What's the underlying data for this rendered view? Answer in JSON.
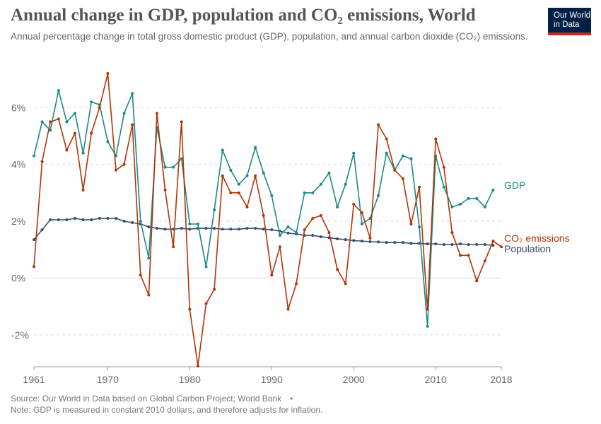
{
  "title": "Annual change in GDP, population and CO₂ emissions, World",
  "subtitle": "Annual percentage change in total gross domestic product (GDP), population, and annual carbon dioxide (CO₂) emissions.",
  "logo": {
    "line1": "Our World",
    "line2": "in Data",
    "bg_color": "#002147",
    "accent_color": "#ce261e"
  },
  "source": "Source: Our World in Data based on Global Carbon Project; World Bank",
  "source_separator": "•",
  "note": "Note: GDP is measured in constant 2010 dollars, and therefore adjusts for inflation.",
  "chart_data": {
    "type": "line",
    "title": "Annual change in GDP, population and CO₂ emissions, World",
    "xlabel": "",
    "ylabel": "",
    "xlim": [
      1961,
      2018
    ],
    "ylim": [
      -3.2,
      7.5
    ],
    "x_ticks": [
      1961,
      1970,
      1980,
      1990,
      2000,
      2010,
      2018
    ],
    "x_tick_labels": [
      "1961",
      "1970",
      "1980",
      "1990",
      "2000",
      "2010",
      "2018"
    ],
    "y_ticks": [
      -2,
      0,
      2,
      4,
      6
    ],
    "y_tick_labels": [
      "-2%",
      "0%",
      "2%",
      "4%",
      "6%"
    ],
    "grid": "horizontal dashed",
    "legend": "inline labels at right end of lines",
    "series": [
      {
        "name": "GDP",
        "color": "#1a8a87",
        "x": [
          1961,
          1962,
          1963,
          1964,
          1965,
          1966,
          1967,
          1968,
          1969,
          1970,
          1971,
          1972,
          1973,
          1974,
          1975,
          1976,
          1977,
          1978,
          1979,
          1980,
          1981,
          1982,
          1983,
          1984,
          1985,
          1986,
          1987,
          1988,
          1989,
          1990,
          1991,
          1992,
          1993,
          1994,
          1995,
          1996,
          1997,
          1998,
          1999,
          2000,
          2001,
          2002,
          2003,
          2004,
          2005,
          2006,
          2007,
          2008,
          2009,
          2010,
          2011,
          2012,
          2013,
          2014,
          2015,
          2016,
          2017
        ],
        "values": [
          4.3,
          5.5,
          5.2,
          6.6,
          5.5,
          5.8,
          4.4,
          6.2,
          6.1,
          4.8,
          4.3,
          5.8,
          6.5,
          2.0,
          0.7,
          5.3,
          3.9,
          3.9,
          4.2,
          1.9,
          1.9,
          0.4,
          2.4,
          4.5,
          3.8,
          3.3,
          3.6,
          4.6,
          3.7,
          2.9,
          1.5,
          1.8,
          1.6,
          3.0,
          3.0,
          3.3,
          3.7,
          2.5,
          3.3,
          4.4,
          1.9,
          2.1,
          2.9,
          4.4,
          3.8,
          4.3,
          4.2,
          1.8,
          -1.7,
          4.3,
          3.2,
          2.5,
          2.6,
          2.8,
          2.8,
          2.5,
          3.1
        ]
      },
      {
        "name": "CO₂ emissions",
        "color": "#b13507",
        "x": [
          1961,
          1962,
          1963,
          1964,
          1965,
          1966,
          1967,
          1968,
          1969,
          1970,
          1971,
          1972,
          1973,
          1974,
          1975,
          1976,
          1977,
          1978,
          1979,
          1980,
          1981,
          1982,
          1983,
          1984,
          1985,
          1986,
          1987,
          1988,
          1989,
          1990,
          1991,
          1992,
          1993,
          1994,
          1995,
          1996,
          1997,
          1998,
          1999,
          2000,
          2001,
          2002,
          2003,
          2004,
          2005,
          2006,
          2007,
          2008,
          2009,
          2010,
          2011,
          2012,
          2013,
          2014,
          2015,
          2016,
          2017,
          2018
        ],
        "values": [
          0.4,
          4.1,
          5.5,
          5.6,
          4.5,
          5.1,
          3.1,
          5.1,
          6.0,
          7.2,
          3.8,
          4.0,
          5.4,
          0.1,
          -0.6,
          5.8,
          3.1,
          1.1,
          5.5,
          -1.1,
          -3.1,
          -0.9,
          -0.4,
          3.6,
          3.0,
          3.0,
          2.5,
          3.6,
          2.2,
          0.1,
          1.1,
          -1.1,
          -0.2,
          1.7,
          2.1,
          2.2,
          1.6,
          0.3,
          -0.2,
          2.6,
          2.3,
          1.4,
          5.4,
          4.9,
          3.8,
          3.5,
          1.9,
          3.2,
          -1.1,
          4.9,
          3.9,
          1.6,
          0.8,
          0.8,
          -0.1,
          0.6,
          1.3,
          1.1
        ]
      },
      {
        "name": "Population",
        "color": "#3b4c6b",
        "x": [
          1961,
          1962,
          1963,
          1964,
          1965,
          1966,
          1967,
          1968,
          1969,
          1970,
          1971,
          1972,
          1973,
          1974,
          1975,
          1976,
          1977,
          1978,
          1979,
          1980,
          1981,
          1982,
          1983,
          1984,
          1985,
          1986,
          1987,
          1988,
          1989,
          1990,
          1991,
          1992,
          1993,
          1994,
          1995,
          1996,
          1997,
          1998,
          1999,
          2000,
          2001,
          2002,
          2003,
          2004,
          2005,
          2006,
          2007,
          2008,
          2009,
          2010,
          2011,
          2012,
          2013,
          2014,
          2015,
          2016,
          2017
        ],
        "values": [
          1.35,
          1.7,
          2.05,
          2.05,
          2.05,
          2.1,
          2.05,
          2.05,
          2.1,
          2.1,
          2.1,
          2.0,
          1.95,
          1.9,
          1.8,
          1.75,
          1.72,
          1.72,
          1.75,
          1.72,
          1.75,
          1.75,
          1.75,
          1.72,
          1.72,
          1.72,
          1.75,
          1.75,
          1.72,
          1.7,
          1.65,
          1.58,
          1.55,
          1.5,
          1.5,
          1.45,
          1.42,
          1.38,
          1.35,
          1.32,
          1.3,
          1.28,
          1.27,
          1.25,
          1.25,
          1.25,
          1.22,
          1.22,
          1.2,
          1.2,
          1.18,
          1.18,
          1.2,
          1.18,
          1.18,
          1.18,
          1.15
        ]
      }
    ]
  }
}
